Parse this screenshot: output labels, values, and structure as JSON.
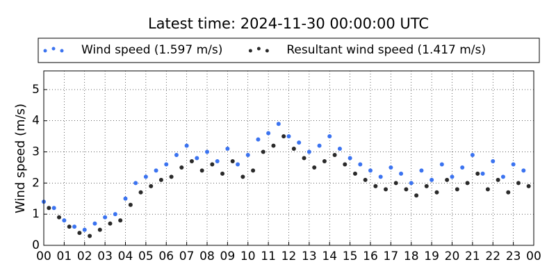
{
  "chart_data": {
    "type": "scatter",
    "title": "Latest time: 2024-11-30 00:00:00 UTC",
    "y_label": "Wind speed (m/s)",
    "xlim": [
      0,
      24
    ],
    "ylim": [
      0,
      5.6
    ],
    "xticks": [
      {
        "value": 0,
        "label": "00"
      },
      {
        "value": 1,
        "label": "01"
      },
      {
        "value": 2,
        "label": "02"
      },
      {
        "value": 3,
        "label": "03"
      },
      {
        "value": 4,
        "label": "04"
      },
      {
        "value": 5,
        "label": "05"
      },
      {
        "value": 6,
        "label": "06"
      },
      {
        "value": 7,
        "label": "07"
      },
      {
        "value": 8,
        "label": "08"
      },
      {
        "value": 9,
        "label": "09"
      },
      {
        "value": 10,
        "label": "10"
      },
      {
        "value": 11,
        "label": "11"
      },
      {
        "value": 12,
        "label": "12"
      },
      {
        "value": 13,
        "label": "13"
      },
      {
        "value": 14,
        "label": "14"
      },
      {
        "value": 15,
        "label": "15"
      },
      {
        "value": 16,
        "label": "16"
      },
      {
        "value": 17,
        "label": "17"
      },
      {
        "value": 18,
        "label": "18"
      },
      {
        "value": 19,
        "label": "19"
      },
      {
        "value": 20,
        "label": "20"
      },
      {
        "value": 21,
        "label": "21"
      },
      {
        "value": 22,
        "label": "22"
      },
      {
        "value": 23,
        "label": "23"
      },
      {
        "value": 24,
        "label": "00"
      }
    ],
    "yticks": [
      0,
      1,
      2,
      3,
      4,
      5
    ],
    "grid": true,
    "legend": "top",
    "series": [
      {
        "name": "Wind speed (1.597 m/s)",
        "color": "#3b73f0",
        "x": [
          0,
          0.5,
          1,
          1.5,
          2,
          2.5,
          3,
          3.5,
          4,
          4.5,
          5,
          5.5,
          6,
          6.5,
          7,
          7.5,
          8,
          8.5,
          9,
          9.5,
          10,
          10.5,
          11,
          11.5,
          12,
          12.5,
          13,
          13.5,
          14,
          14.5,
          15,
          15.5,
          16,
          16.5,
          17,
          17.5,
          18,
          18.5,
          19,
          19.5,
          20,
          20.5,
          21,
          21.5,
          22,
          22.5,
          23,
          23.5
        ],
        "values": [
          1.4,
          1.2,
          0.8,
          0.6,
          0.5,
          0.7,
          0.9,
          1.0,
          1.5,
          2.0,
          2.2,
          2.4,
          2.6,
          2.9,
          3.2,
          2.8,
          3.0,
          2.7,
          3.1,
          2.6,
          2.9,
          3.4,
          3.6,
          3.9,
          3.5,
          3.3,
          3.0,
          3.2,
          3.5,
          3.1,
          2.8,
          2.6,
          2.4,
          2.2,
          2.5,
          2.3,
          2.0,
          2.4,
          2.1,
          2.6,
          2.2,
          2.5,
          2.9,
          2.3,
          2.7,
          2.2,
          2.6,
          2.4
        ]
      },
      {
        "name": "Resultant wind speed (1.417 m/s)",
        "color": "#2a2a2a",
        "x": [
          0.25,
          0.75,
          1.25,
          1.75,
          2.25,
          2.75,
          3.25,
          3.75,
          4.25,
          4.75,
          5.25,
          5.75,
          6.25,
          6.75,
          7.25,
          7.75,
          8.25,
          8.75,
          9.25,
          9.75,
          10.25,
          10.75,
          11.25,
          11.75,
          12.25,
          12.75,
          13.25,
          13.75,
          14.25,
          14.75,
          15.25,
          15.75,
          16.25,
          16.75,
          17.25,
          17.75,
          18.25,
          18.75,
          19.25,
          19.75,
          20.25,
          20.75,
          21.25,
          21.75,
          22.25,
          22.75,
          23.25,
          23.75
        ],
        "values": [
          1.2,
          0.9,
          0.6,
          0.4,
          0.3,
          0.5,
          0.7,
          0.8,
          1.3,
          1.7,
          1.9,
          2.1,
          2.2,
          2.5,
          2.7,
          2.4,
          2.6,
          2.3,
          2.7,
          2.2,
          2.4,
          3.0,
          3.2,
          3.5,
          3.1,
          2.8,
          2.5,
          2.7,
          2.9,
          2.6,
          2.3,
          2.1,
          1.9,
          1.8,
          2.0,
          1.8,
          1.6,
          1.9,
          1.7,
          2.1,
          1.8,
          2.0,
          2.3,
          1.8,
          2.1,
          1.7,
          2.0,
          1.9
        ]
      }
    ]
  }
}
